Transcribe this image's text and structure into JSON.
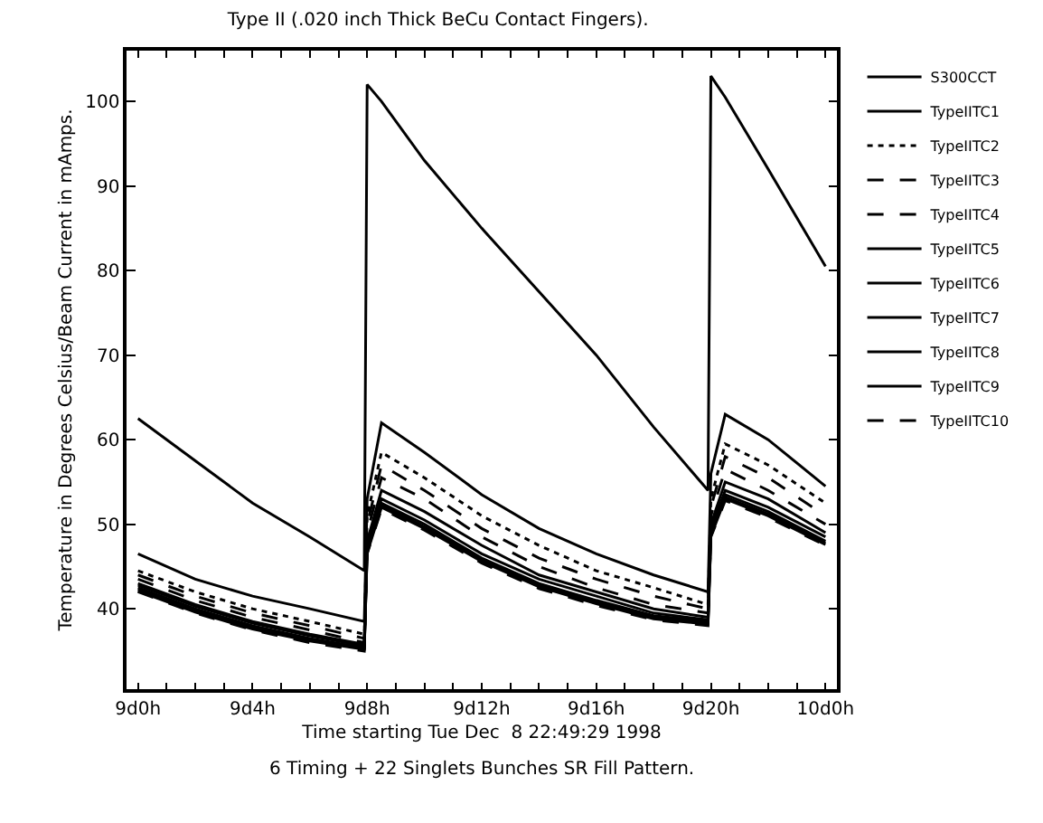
{
  "chart_data": {
    "type": "line",
    "title": "Type II (.020 inch Thick BeCu Contact Fingers).",
    "xlabel": "Time starting Tue Dec  8 22:49:29 1998",
    "ylabel": "Temperature in Degrees Celsius/Beam Current in mAmps.",
    "annotations": [
      "6 Timing + 22 Singlets Bunches SR Fill Pattern."
    ],
    "x": [
      "1998-12-09T00:00",
      "1998-12-09T02:00",
      "1998-12-09T04:00",
      "1998-12-09T06:00",
      "1998-12-09T07:54",
      "1998-12-09T08:00",
      "1998-12-09T08:30",
      "1998-12-09T10:00",
      "1998-12-09T12:00",
      "1998-12-09T14:00",
      "1998-12-09T16:00",
      "1998-12-09T18:00",
      "1998-12-09T19:54",
      "1998-12-09T20:00",
      "1998-12-09T20:30",
      "1998-12-09T22:00",
      "1998-12-10T00:00"
    ],
    "xlim": [
      "1998-12-08T23:36",
      "1998-12-10T00:24"
    ],
    "xticks": [
      {
        "value": "1998-12-09T00:00",
        "label": "9d0h"
      },
      {
        "value": "1998-12-09T01:00",
        "label": null
      },
      {
        "value": "1998-12-09T02:00",
        "label": null
      },
      {
        "value": "1998-12-09T03:00",
        "label": null
      },
      {
        "value": "1998-12-09T04:00",
        "label": "9d4h"
      },
      {
        "value": "1998-12-09T05:00",
        "label": null
      },
      {
        "value": "1998-12-09T06:00",
        "label": null
      },
      {
        "value": "1998-12-09T07:00",
        "label": null
      },
      {
        "value": "1998-12-09T08:00",
        "label": "9d8h"
      },
      {
        "value": "1998-12-09T09:00",
        "label": null
      },
      {
        "value": "1998-12-09T10:00",
        "label": null
      },
      {
        "value": "1998-12-09T11:00",
        "label": null
      },
      {
        "value": "1998-12-09T12:00",
        "label": "9d12h"
      },
      {
        "value": "1998-12-09T13:00",
        "label": null
      },
      {
        "value": "1998-12-09T14:00",
        "label": null
      },
      {
        "value": "1998-12-09T15:00",
        "label": null
      },
      {
        "value": "1998-12-09T16:00",
        "label": "9d16h"
      },
      {
        "value": "1998-12-09T17:00",
        "label": null
      },
      {
        "value": "1998-12-09T18:00",
        "label": null
      },
      {
        "value": "1998-12-09T19:00",
        "label": null
      },
      {
        "value": "1998-12-09T20:00",
        "label": "9d20h"
      },
      {
        "value": "1998-12-09T21:00",
        "label": null
      },
      {
        "value": "1998-12-09T22:00",
        "label": null
      },
      {
        "value": "1998-12-09T23:00",
        "label": null
      },
      {
        "value": "1998-12-10T00:00",
        "label": "10d0h"
      }
    ],
    "ylim": [
      30.5,
      106
    ],
    "yticks": [
      40,
      50,
      60,
      70,
      80,
      90,
      100
    ],
    "grid": false,
    "legend": "right",
    "marker": "none",
    "series": [
      {
        "name": "S300CCT",
        "color": "#000000",
        "line_style": "solid",
        "values": [
          62.5,
          57.5,
          52.5,
          48.5,
          44.5,
          102,
          100,
          93,
          85,
          77.5,
          70,
          61.5,
          54,
          103,
          100.5,
          92,
          80.5
        ]
      },
      {
        "name": "TypeIITC1",
        "color": "#000000",
        "line_style": "solid",
        "values": [
          46.5,
          43.5,
          41.5,
          40,
          38.5,
          53,
          62,
          58.5,
          53.5,
          49.5,
          46.5,
          44,
          42,
          56,
          63,
          60,
          54.5
        ]
      },
      {
        "name": "TypeIITC2",
        "color": "#000000",
        "line_style": "dotted",
        "values": [
          44.5,
          42,
          40,
          38.5,
          37,
          51,
          58.5,
          55.5,
          51,
          47.5,
          44.5,
          42.5,
          40.5,
          53,
          59.5,
          57,
          52.5
        ]
      },
      {
        "name": "TypeIITC3",
        "color": "#000000",
        "line_style": "dashed",
        "values": [
          44,
          41.5,
          39.5,
          38,
          36.5,
          50,
          57,
          54,
          49.5,
          46,
          43.5,
          41.5,
          40,
          52,
          58,
          55.5,
          51
        ]
      },
      {
        "name": "TypeIITC4",
        "color": "#000000",
        "line_style": "dashed",
        "values": [
          43.5,
          41,
          39,
          37.5,
          36,
          49,
          55.5,
          53,
          48.5,
          45,
          42.5,
          40.5,
          39.5,
          51,
          56.5,
          54,
          50
        ]
      },
      {
        "name": "TypeIITC5",
        "color": "#000000",
        "line_style": "solid",
        "values": [
          43,
          40.5,
          38.5,
          37,
          35.8,
          48,
          54,
          51.5,
          47.5,
          44,
          42,
          40,
          39,
          50,
          55,
          53,
          49
        ]
      },
      {
        "name": "TypeIITC6",
        "color": "#000000",
        "line_style": "solid",
        "values": [
          42.8,
          40.3,
          38.3,
          36.8,
          35.6,
          47.5,
          53,
          50.5,
          46.5,
          43.5,
          41.5,
          39.5,
          38.7,
          49.5,
          54,
          52,
          48.5
        ]
      },
      {
        "name": "TypeIITC7",
        "color": "#000000",
        "line_style": "solid",
        "values": [
          42.5,
          40,
          38,
          36.5,
          35.4,
          47,
          52.5,
          50,
          46,
          43,
          41,
          39.2,
          38.5,
          49,
          53.5,
          51.5,
          48
        ]
      },
      {
        "name": "TypeIITC8",
        "color": "#000000",
        "line_style": "solid",
        "values": [
          42.3,
          39.8,
          37.8,
          36.3,
          35.3,
          46.8,
          52.3,
          49.7,
          45.8,
          42.8,
          40.8,
          39,
          38.3,
          48.8,
          53.2,
          51.2,
          47.8
        ]
      },
      {
        "name": "TypeIITC9",
        "color": "#000000",
        "line_style": "solid",
        "values": [
          42.1,
          39.6,
          37.6,
          36.2,
          35.2,
          46.6,
          52,
          49.5,
          45.6,
          42.6,
          40.6,
          38.8,
          38.2,
          48.6,
          53,
          51,
          47.6
        ]
      },
      {
        "name": "TypeIITC10",
        "color": "#000000",
        "line_style": "dashed",
        "values": [
          42,
          39.5,
          37.5,
          36,
          35,
          46.5,
          51.8,
          49.3,
          45.4,
          42.4,
          40.4,
          38.7,
          38,
          48.5,
          52.8,
          50.8,
          47.5
        ]
      }
    ]
  }
}
